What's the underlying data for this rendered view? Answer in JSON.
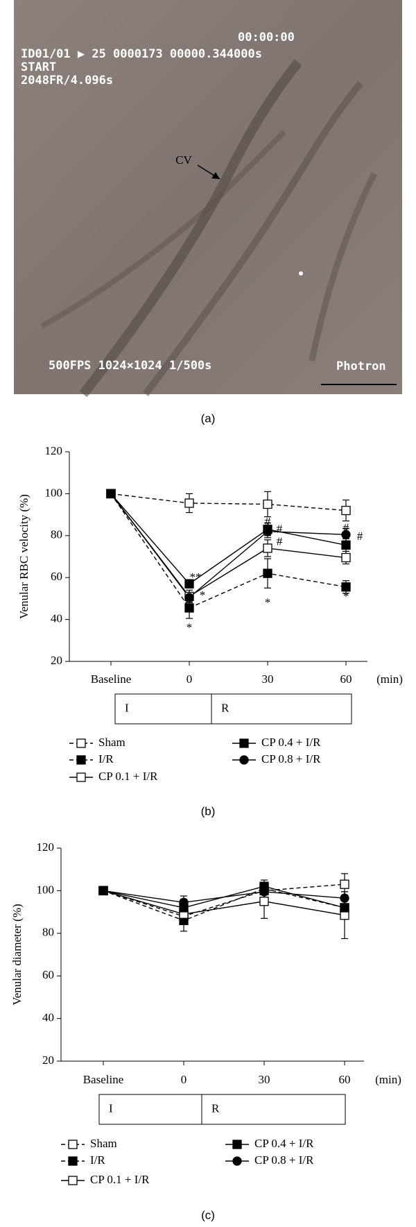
{
  "image_panel": {
    "overlay_text": [
      "00:00:00",
      "ID01/01 ▶ 25 0000173 00000.344000s",
      "START",
      "2048FR/4.096s",
      "500FPS 1024×1024 1/500s",
      "Photron"
    ],
    "label": "CV",
    "panel_label": "(a)"
  },
  "chart_data": [
    {
      "type": "line",
      "panel_label": "(b)",
      "ylabel": "Venular RBC velocity (%)",
      "categories": [
        "Baseline",
        "0",
        "30",
        "60"
      ],
      "x_unit": "(min)",
      "ylim": [
        20,
        120
      ],
      "yticks": [
        20,
        40,
        60,
        80,
        100,
        120
      ],
      "phases": [
        "I",
        "R"
      ],
      "series": [
        {
          "name": "Sham",
          "color": "#000000",
          "dashed": true,
          "marker": "square-open",
          "values": [
            100,
            95.5,
            95,
            92
          ],
          "errors": [
            0,
            4.5,
            6,
            5
          ]
        },
        {
          "name": "I/R",
          "color": "#000000",
          "dashed": true,
          "marker": "square-filled",
          "values": [
            100,
            45.5,
            62,
            55.5
          ],
          "errors": [
            0,
            5,
            7,
            3
          ]
        },
        {
          "name": "CP 0.1 + I/R",
          "color": "#000000",
          "dashed": false,
          "marker": "square-open",
          "values": [
            100,
            51,
            74,
            69.5
          ],
          "errors": [
            0,
            3,
            4,
            3
          ]
        },
        {
          "name": "CP 0.4 + I/R",
          "color": "#000000",
          "dashed": false,
          "marker": "square-filled",
          "values": [
            100,
            57,
            83,
            75.5
          ],
          "errors": [
            0,
            2,
            3,
            3
          ]
        },
        {
          "name": "CP 0.8 + I/R",
          "color": "#000000",
          "dashed": false,
          "marker": "circle-filled",
          "values": [
            100,
            50.5,
            82,
            80.5
          ],
          "errors": [
            0,
            2,
            3,
            3
          ]
        }
      ],
      "annotations": [
        {
          "text": "**",
          "x": "0",
          "y": 61
        },
        {
          "text": "*",
          "x": "0",
          "y": 52.5
        },
        {
          "text": "*",
          "x": "0",
          "y": 37
        },
        {
          "text": "#",
          "x": "30",
          "y": 87.5
        },
        {
          "text": "#",
          "x": "30",
          "y": 84
        },
        {
          "text": "#",
          "x": "30",
          "y": 78
        },
        {
          "text": "*",
          "x": "30",
          "y": 49
        },
        {
          "text": "#",
          "x": "60",
          "y": 84.5
        },
        {
          "text": "#",
          "x": "60",
          "y": 80.5
        },
        {
          "text": "*",
          "x": "60",
          "y": 52
        }
      ]
    },
    {
      "type": "line",
      "panel_label": "(c)",
      "ylabel": "Venular diameter (%)",
      "categories": [
        "Baseline",
        "0",
        "30",
        "60"
      ],
      "x_unit": "(min)",
      "ylim": [
        20,
        120
      ],
      "yticks": [
        20,
        40,
        60,
        80,
        100,
        120
      ],
      "phases": [
        "I",
        "R"
      ],
      "series": [
        {
          "name": "Sham",
          "color": "#000000",
          "dashed": true,
          "marker": "square-open",
          "values": [
            100,
            88,
            100,
            103
          ],
          "errors": [
            0,
            3,
            3,
            5
          ]
        },
        {
          "name": "I/R",
          "color": "#000000",
          "dashed": true,
          "marker": "square-filled",
          "values": [
            100,
            86,
            101,
            92
          ],
          "errors": [
            0,
            5,
            3,
            4
          ]
        },
        {
          "name": "CP 0.1 + I/R",
          "color": "#000000",
          "dashed": false,
          "marker": "square-open",
          "values": [
            100,
            89,
            95,
            88.5
          ],
          "errors": [
            0,
            3,
            8,
            11
          ]
        },
        {
          "name": "CP 0.4 + I/R",
          "color": "#000000",
          "dashed": false,
          "marker": "square-filled",
          "values": [
            100,
            92,
            102,
            92
          ],
          "errors": [
            0,
            4,
            3,
            4
          ]
        },
        {
          "name": "CP 0.8 + I/R",
          "color": "#000000",
          "dashed": false,
          "marker": "circle-filled",
          "values": [
            100,
            94.5,
            99.5,
            96.5
          ],
          "errors": [
            0,
            3,
            3,
            3
          ]
        }
      ]
    }
  ]
}
